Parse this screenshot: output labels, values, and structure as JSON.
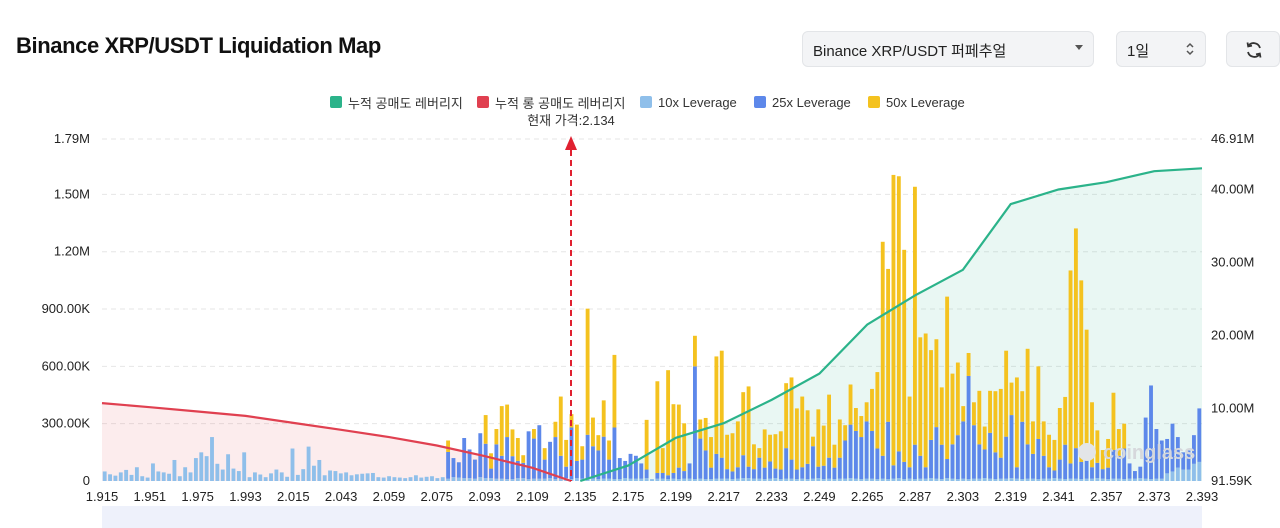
{
  "header": {
    "title": "Binance XRP/USDT Liquidation Map",
    "pair_select": "Binance XRP/USDT 퍼페추얼",
    "interval_select": "1일",
    "refresh_icon": "refresh-icon"
  },
  "legend": {
    "items": [
      {
        "label": "누적 공매도 레버리지",
        "color": "#2bb38a"
      },
      {
        "label": "누적 롱 공매도 레버리지",
        "color": "#e04050"
      },
      {
        "label": "10x Leverage",
        "color": "#8fbfea"
      },
      {
        "label": "25x Leverage",
        "color": "#5d88ea"
      },
      {
        "label": "50x Leverage",
        "color": "#f4c21f"
      }
    ]
  },
  "current_price_label": "현재 가격:2.134",
  "watermark": "coinglass",
  "colors": {
    "short_cum_line": "#2bb38a",
    "short_cum_fill": "rgba(43,179,138,0.10)",
    "long_cum_line": "#e04050",
    "long_cum_fill": "rgba(224,64,80,0.10)",
    "lev10": "#8fbfea",
    "lev25": "#5d88ea",
    "lev50": "#f4c21f",
    "price_marker": "#e02030"
  },
  "chart_data": {
    "type": "bar",
    "title": "Binance XRP/USDT Liquidation Map",
    "xlabel": "",
    "ylabel": "",
    "x_tick_labels": [
      "1.915",
      "1.951",
      "1.975",
      "1.993",
      "2.015",
      "2.043",
      "2.059",
      "2.075",
      "2.093",
      "2.109",
      "2.135",
      "2.175",
      "2.199",
      "2.217",
      "2.233",
      "2.249",
      "2.265",
      "2.287",
      "2.303",
      "2.319",
      "2.341",
      "2.357",
      "2.373",
      "2.393"
    ],
    "xlim": [
      1.915,
      2.393
    ],
    "y_left": {
      "tick_labels": [
        "0",
        "300.00K",
        "600.00K",
        "900.00K",
        "1.20M",
        "1.50M",
        "1.79M"
      ],
      "ylim": [
        0,
        1790000
      ]
    },
    "y_right": {
      "tick_labels": [
        "91.59K",
        "10.00M",
        "20.00M",
        "30.00M",
        "40.00M",
        "46.91M"
      ],
      "ylim": [
        91590,
        46910000
      ]
    },
    "current_price": 2.134,
    "bar_count": 205,
    "grid": true,
    "legend_position": "top-center",
    "series": [
      {
        "name": "10x Leverage",
        "values": [
          50000,
          35000,
          28000,
          45000,
          58000,
          32000,
          72000,
          25000,
          18000,
          92000,
          50000,
          45000,
          38000,
          110000,
          25000,
          72000,
          45000,
          120000,
          150000,
          130000,
          230000,
          90000,
          60000,
          140000,
          65000,
          52000,
          150000,
          20000,
          45000,
          34000,
          20000,
          40000,
          60000,
          45000,
          22000,
          170000,
          32000,
          62000,
          180000,
          80000,
          110000,
          30000,
          55000,
          52000,
          40000,
          45000,
          30000,
          35000,
          38000,
          40000,
          42000,
          20000,
          18000,
          25000,
          20000,
          18000,
          15000,
          20000,
          30000,
          18000,
          22000,
          25000,
          15000,
          20000,
          12000,
          20000,
          18000,
          15000,
          15000,
          12000,
          20000,
          15000,
          15000,
          12000,
          12000,
          10000,
          10000,
          15000,
          15000,
          10000,
          12000,
          12000,
          12000,
          15000,
          10000,
          12000,
          15000,
          10000,
          15000,
          12000,
          12000,
          12000,
          10000,
          12000,
          12000,
          10000,
          10000,
          15000,
          12000,
          12000,
          12000,
          15000,
          10000,
          12000,
          12000,
          10000,
          12000,
          10000,
          12000,
          12000,
          10000,
          12000,
          10000,
          10000,
          12000,
          12000,
          12000,
          10000,
          12000,
          15000,
          15000,
          12000,
          12000,
          10000,
          12000,
          15000,
          10000,
          12000,
          12000,
          10000,
          12000,
          10000,
          12000,
          15000,
          10000,
          12000,
          10000,
          12000,
          12000,
          15000,
          12000,
          10000,
          12000,
          12000,
          10000,
          12000,
          10000,
          12000,
          15000,
          10000,
          12000,
          10000,
          12000,
          12000,
          15000,
          12000,
          10000,
          15000,
          12000,
          10000,
          12000,
          10000,
          12000,
          12000,
          15000,
          12000,
          10000,
          12000,
          12000,
          15000,
          12000,
          10000,
          12000,
          12000,
          10000,
          12000,
          12000,
          15000,
          12000,
          10000,
          12000,
          12000,
          10000,
          12000,
          12000,
          15000,
          12000,
          10000,
          12000,
          12000,
          10000,
          12000,
          12000,
          15000,
          12000,
          10000,
          12000,
          12000,
          40000,
          50000,
          70000,
          60000,
          60000,
          90000,
          100000
        ]
      },
      {
        "name": "25x Leverage",
        "values": [
          0,
          0,
          0,
          0,
          0,
          0,
          0,
          0,
          0,
          0,
          0,
          0,
          0,
          0,
          0,
          0,
          0,
          0,
          0,
          0,
          0,
          0,
          0,
          0,
          0,
          0,
          0,
          0,
          0,
          0,
          0,
          0,
          0,
          0,
          0,
          0,
          0,
          0,
          0,
          0,
          0,
          0,
          0,
          0,
          0,
          0,
          0,
          0,
          0,
          0,
          0,
          0,
          0,
          0,
          0,
          0,
          0,
          0,
          0,
          0,
          0,
          0,
          0,
          0,
          140000,
          100000,
          80000,
          210000,
          150000,
          100000,
          230000,
          180000,
          50000,
          180000,
          120000,
          220000,
          120000,
          90000,
          80000,
          250000,
          210000,
          280000,
          100000,
          190000,
          220000,
          120000,
          60000,
          270000,
          90000,
          100000,
          230000,
          170000,
          150000,
          220000,
          100000,
          270000,
          110000,
          90000,
          130000,
          120000,
          80000,
          45000,
          0,
          30000,
          30000,
          20000,
          30000,
          60000,
          40000,
          80000,
          590000,
          210000,
          150000,
          60000,
          130000,
          110000,
          50000,
          40000,
          60000,
          120000,
          60000,
          50000,
          110000,
          60000,
          90000,
          50000,
          50000,
          160000,
          100000,
          50000,
          60000,
          80000,
          170000,
          60000,
          70000,
          110000,
          60000,
          110000,
          200000,
          280000,
          250000,
          220000,
          300000,
          250000,
          160000,
          120000,
          300000,
          70000,
          140000,
          90000,
          60000,
          180000,
          120000,
          60000,
          200000,
          270000,
          180000,
          100000,
          180000,
          230000,
          300000,
          540000,
          280000,
          180000,
          150000,
          240000,
          140000,
          110000,
          220000,
          330000,
          60000,
          300000,
          180000,
          130000,
          210000,
          120000,
          60000,
          40000,
          100000,
          180000,
          80000,
          160000,
          90000,
          160000,
          60000,
          80000,
          50000,
          60000,
          150000,
          120000,
          160000,
          80000,
          40000,
          60000,
          320000,
          490000,
          260000,
          200000,
          180000,
          250000,
          160000,
          90000,
          100000,
          150000,
          280000,
          100000,
          60000,
          80000,
          60000
        ]
      },
      {
        "name": "50x Leverage",
        "values": [
          0,
          0,
          0,
          0,
          0,
          0,
          0,
          0,
          0,
          0,
          0,
          0,
          0,
          0,
          0,
          0,
          0,
          0,
          0,
          0,
          0,
          0,
          0,
          0,
          0,
          0,
          0,
          0,
          0,
          0,
          0,
          0,
          0,
          0,
          0,
          0,
          0,
          0,
          0,
          0,
          0,
          0,
          0,
          0,
          0,
          0,
          0,
          0,
          0,
          0,
          0,
          0,
          0,
          0,
          0,
          0,
          0,
          0,
          0,
          0,
          0,
          0,
          0,
          0,
          60000,
          0,
          0,
          0,
          0,
          0,
          0,
          150000,
          80000,
          80000,
          260000,
          170000,
          140000,
          120000,
          40000,
          0,
          50000,
          0,
          60000,
          0,
          80000,
          310000,
          140000,
          70000,
          190000,
          70000,
          660000,
          150000,
          80000,
          190000,
          100000,
          380000,
          0,
          0,
          0,
          0,
          0,
          260000,
          0,
          480000,
          130000,
          550000,
          360000,
          330000,
          250000,
          0,
          160000,
          100000,
          170000,
          160000,
          510000,
          560000,
          180000,
          200000,
          240000,
          330000,
          420000,
          130000,
          50000,
          200000,
          140000,
          180000,
          200000,
          340000,
          430000,
          320000,
          370000,
          280000,
          50000,
          300000,
          210000,
          330000,
          120000,
          200000,
          80000,
          210000,
          120000,
          110000,
          100000,
          220000,
          400000,
          1120000,
          800000,
          1520000,
          1440000,
          1110000,
          370000,
          1350000,
          620000,
          700000,
          470000,
          460000,
          300000,
          850000,
          370000,
          380000,
          80000,
          120000,
          120000,
          280000,
          120000,
          220000,
          320000,
          360000,
          450000,
          170000,
          470000,
          160000,
          500000,
          170000,
          380000,
          180000,
          170000,
          160000,
          270000,
          250000,
          1010000,
          1150000,
          950000,
          620000,
          340000,
          170000,
          100000,
          150000,
          300000,
          140000,
          130000,
          0,
          0,
          0,
          0,
          0,
          0,
          0,
          0,
          0,
          0,
          0,
          0
        ]
      }
    ],
    "cumulative_long_points": {
      "price": [
        1.915,
        1.951,
        1.975,
        1.993,
        2.015,
        2.043,
        2.059,
        2.075,
        2.093,
        2.109,
        2.13
      ],
      "value": [
        10750000,
        10200000,
        9600000,
        9000000,
        8050000,
        7100000,
        6100000,
        4950000,
        3500000,
        1900000,
        91590
      ]
    },
    "cumulative_short_points": {
      "price": [
        2.135,
        2.175,
        2.199,
        2.217,
        2.233,
        2.249,
        2.265,
        2.287,
        2.303,
        2.319,
        2.341,
        2.357,
        2.373,
        2.393
      ],
      "value": [
        91590,
        2200000,
        6000000,
        8000000,
        11200000,
        14800000,
        21500000,
        25500000,
        29000000,
        38000000,
        40000000,
        41000000,
        42500000,
        42900000
      ]
    }
  }
}
